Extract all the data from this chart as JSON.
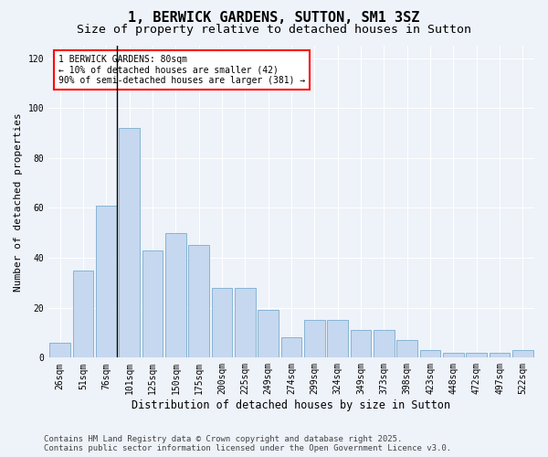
{
  "title": "1, BERWICK GARDENS, SUTTON, SM1 3SZ",
  "subtitle": "Size of property relative to detached houses in Sutton",
  "xlabel": "Distribution of detached houses by size in Sutton",
  "ylabel": "Number of detached properties",
  "categories": [
    "26sqm",
    "51sqm",
    "76sqm",
    "101sqm",
    "125sqm",
    "150sqm",
    "175sqm",
    "200sqm",
    "225sqm",
    "249sqm",
    "274sqm",
    "299sqm",
    "324sqm",
    "349sqm",
    "373sqm",
    "398sqm",
    "423sqm",
    "448sqm",
    "472sqm",
    "497sqm",
    "522sqm"
  ],
  "values": [
    6,
    35,
    61,
    92,
    43,
    50,
    45,
    28,
    28,
    19,
    8,
    15,
    15,
    11,
    11,
    7,
    3,
    2,
    2,
    2,
    3
  ],
  "bar_color": "#c5d8ef",
  "bar_edge_color": "#7aadcf",
  "vline_color": "black",
  "annotation_title": "1 BERWICK GARDENS: 80sqm",
  "annotation_line1": "← 10% of detached houses are smaller (42)",
  "annotation_line2": "90% of semi-detached houses are larger (381) →",
  "ylim": [
    0,
    125
  ],
  "yticks": [
    0,
    20,
    40,
    60,
    80,
    100,
    120
  ],
  "footer1": "Contains HM Land Registry data © Crown copyright and database right 2025.",
  "footer2": "Contains public sector information licensed under the Open Government Licence v3.0.",
  "bg_color": "#eef2f9",
  "grid_color": "#ffffff",
  "title_fontsize": 11,
  "subtitle_fontsize": 9.5,
  "xlabel_fontsize": 8.5,
  "ylabel_fontsize": 8,
  "tick_fontsize": 7,
  "annotation_fontsize": 7,
  "footer_fontsize": 6.5
}
